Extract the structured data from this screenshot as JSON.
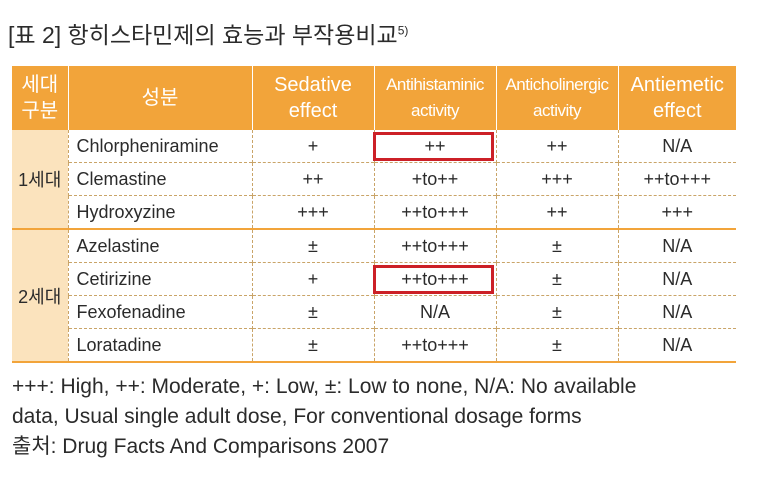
{
  "title": {
    "text": "[표 2] 항히스타민제의 효능과 부작용비교",
    "sup": "5)"
  },
  "table": {
    "headers": [
      {
        "line1": "세대",
        "line2": "구분"
      },
      {
        "line1": "성분",
        "line2": ""
      },
      {
        "line1": "Sedative",
        "line2": "effect"
      },
      {
        "line1": "Antihistaminic",
        "line2": "activity"
      },
      {
        "line1": "Anticholinergic",
        "line2": "activity"
      },
      {
        "line1": "Antiemetic",
        "line2": "effect"
      }
    ],
    "groups": [
      {
        "label": "1세대",
        "rows": [
          {
            "name": "Chlorpheniramine",
            "sedative": "+",
            "antihistaminic": "++",
            "anticholinergic": "++",
            "antiemetic": "N/A"
          },
          {
            "name": "Clemastine",
            "sedative": "++",
            "antihistaminic": "+to++",
            "anticholinergic": "+++",
            "antiemetic": "++to+++"
          },
          {
            "name": "Hydroxyzine",
            "sedative": "+++",
            "antihistaminic": "++to+++",
            "anticholinergic": "++",
            "antiemetic": "+++"
          }
        ]
      },
      {
        "label": "2세대",
        "rows": [
          {
            "name": "Azelastine",
            "sedative": "±",
            "antihistaminic": "++to+++",
            "anticholinergic": "±",
            "antiemetic": "N/A"
          },
          {
            "name": "Cetirizine",
            "sedative": "+",
            "antihistaminic": "++to+++",
            "anticholinergic": "±",
            "antiemetic": "N/A"
          },
          {
            "name": "Fexofenadine",
            "sedative": "±",
            "antihistaminic": "N/A",
            "anticholinergic": "±",
            "antiemetic": "N/A"
          },
          {
            "name": "Loratadine",
            "sedative": "±",
            "antihistaminic": "++to+++",
            "anticholinergic": "±",
            "antiemetic": "N/A"
          }
        ]
      }
    ]
  },
  "notes": {
    "line1": "+++: High, ++: Moderate, +: Low, ±: Low to none, N/A: No available",
    "line2": "data, Usual single adult dose, For conventional dosage forms",
    "line3": "출처: Drug Facts And Comparisons 2007"
  },
  "colors": {
    "header": "#f2a43a",
    "generation_cell": "#fbe3bd",
    "highlight": "#cc2027"
  }
}
